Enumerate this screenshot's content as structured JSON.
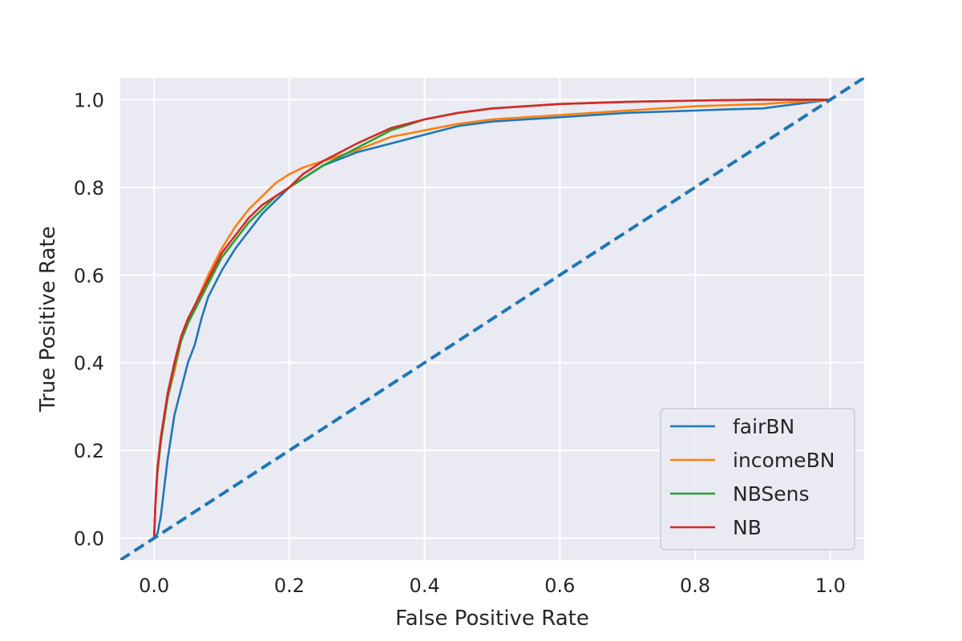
{
  "chart_data": {
    "type": "line",
    "title": "",
    "xlabel": "False Positive Rate",
    "ylabel": "True Positive Rate",
    "xlim": [
      -0.05,
      1.05
    ],
    "ylim": [
      -0.05,
      1.05
    ],
    "xticks": [
      "0.0",
      "0.2",
      "0.4",
      "0.6",
      "0.8",
      "1.0"
    ],
    "yticks": [
      "0.0",
      "0.2",
      "0.4",
      "0.6",
      "0.8",
      "1.0"
    ],
    "grid": true,
    "legend_position": "lower-right",
    "colors": {
      "plot_background": "#eaeaf2",
      "grid": "#ffffff",
      "diagonal": "#1f77b4"
    },
    "series": [
      {
        "name": "fairBN",
        "color": "#1f77b4",
        "x": [
          0.0,
          0.005,
          0.01,
          0.02,
          0.03,
          0.04,
          0.05,
          0.06,
          0.07,
          0.08,
          0.09,
          0.1,
          0.12,
          0.14,
          0.16,
          0.18,
          0.2,
          0.25,
          0.3,
          0.35,
          0.4,
          0.45,
          0.5,
          0.6,
          0.7,
          0.8,
          0.85,
          0.9,
          0.95,
          1.0
        ],
        "y": [
          0.0,
          0.01,
          0.05,
          0.18,
          0.28,
          0.34,
          0.4,
          0.44,
          0.5,
          0.55,
          0.58,
          0.61,
          0.66,
          0.7,
          0.74,
          0.77,
          0.8,
          0.85,
          0.88,
          0.9,
          0.92,
          0.94,
          0.95,
          0.96,
          0.97,
          0.975,
          0.978,
          0.98,
          0.99,
          1.0
        ]
      },
      {
        "name": "incomeBN",
        "color": "#ff7f0e",
        "x": [
          0.0,
          0.002,
          0.005,
          0.01,
          0.02,
          0.03,
          0.04,
          0.05,
          0.06,
          0.08,
          0.1,
          0.12,
          0.14,
          0.16,
          0.18,
          0.2,
          0.22,
          0.25,
          0.3,
          0.35,
          0.4,
          0.45,
          0.5,
          0.6,
          0.7,
          0.8,
          0.9,
          1.0
        ],
        "y": [
          0.0,
          0.08,
          0.15,
          0.22,
          0.32,
          0.38,
          0.45,
          0.49,
          0.53,
          0.6,
          0.66,
          0.71,
          0.75,
          0.78,
          0.81,
          0.83,
          0.845,
          0.86,
          0.885,
          0.915,
          0.93,
          0.945,
          0.955,
          0.965,
          0.975,
          0.985,
          0.99,
          1.0
        ]
      },
      {
        "name": "NBSens",
        "color": "#2ca02c",
        "x": [
          0.0,
          0.002,
          0.005,
          0.01,
          0.02,
          0.03,
          0.04,
          0.05,
          0.06,
          0.08,
          0.1,
          0.12,
          0.14,
          0.16,
          0.18,
          0.2,
          0.22,
          0.25,
          0.3,
          0.35,
          0.4,
          0.45,
          0.5,
          0.6,
          0.7,
          0.8,
          0.9,
          1.0
        ],
        "y": [
          0.0,
          0.08,
          0.15,
          0.22,
          0.32,
          0.39,
          0.45,
          0.49,
          0.52,
          0.58,
          0.64,
          0.68,
          0.72,
          0.75,
          0.78,
          0.8,
          0.82,
          0.85,
          0.89,
          0.93,
          0.955,
          0.97,
          0.98,
          0.99,
          0.995,
          0.998,
          1.0,
          1.0
        ]
      },
      {
        "name": "NB",
        "color": "#d62728",
        "x": [
          0.0,
          0.002,
          0.005,
          0.01,
          0.02,
          0.03,
          0.04,
          0.05,
          0.06,
          0.08,
          0.1,
          0.12,
          0.14,
          0.16,
          0.18,
          0.2,
          0.22,
          0.25,
          0.3,
          0.35,
          0.4,
          0.45,
          0.5,
          0.6,
          0.7,
          0.8,
          0.9,
          1.0
        ],
        "y": [
          0.0,
          0.08,
          0.16,
          0.23,
          0.33,
          0.4,
          0.46,
          0.5,
          0.53,
          0.59,
          0.65,
          0.69,
          0.73,
          0.76,
          0.78,
          0.8,
          0.83,
          0.86,
          0.9,
          0.935,
          0.955,
          0.97,
          0.98,
          0.99,
          0.995,
          0.998,
          1.0,
          1.0
        ]
      }
    ],
    "reference_line": {
      "x": [
        -0.05,
        1.05
      ],
      "y": [
        -0.05,
        1.05
      ],
      "color": "#1f77b4",
      "style": "dashed"
    }
  }
}
